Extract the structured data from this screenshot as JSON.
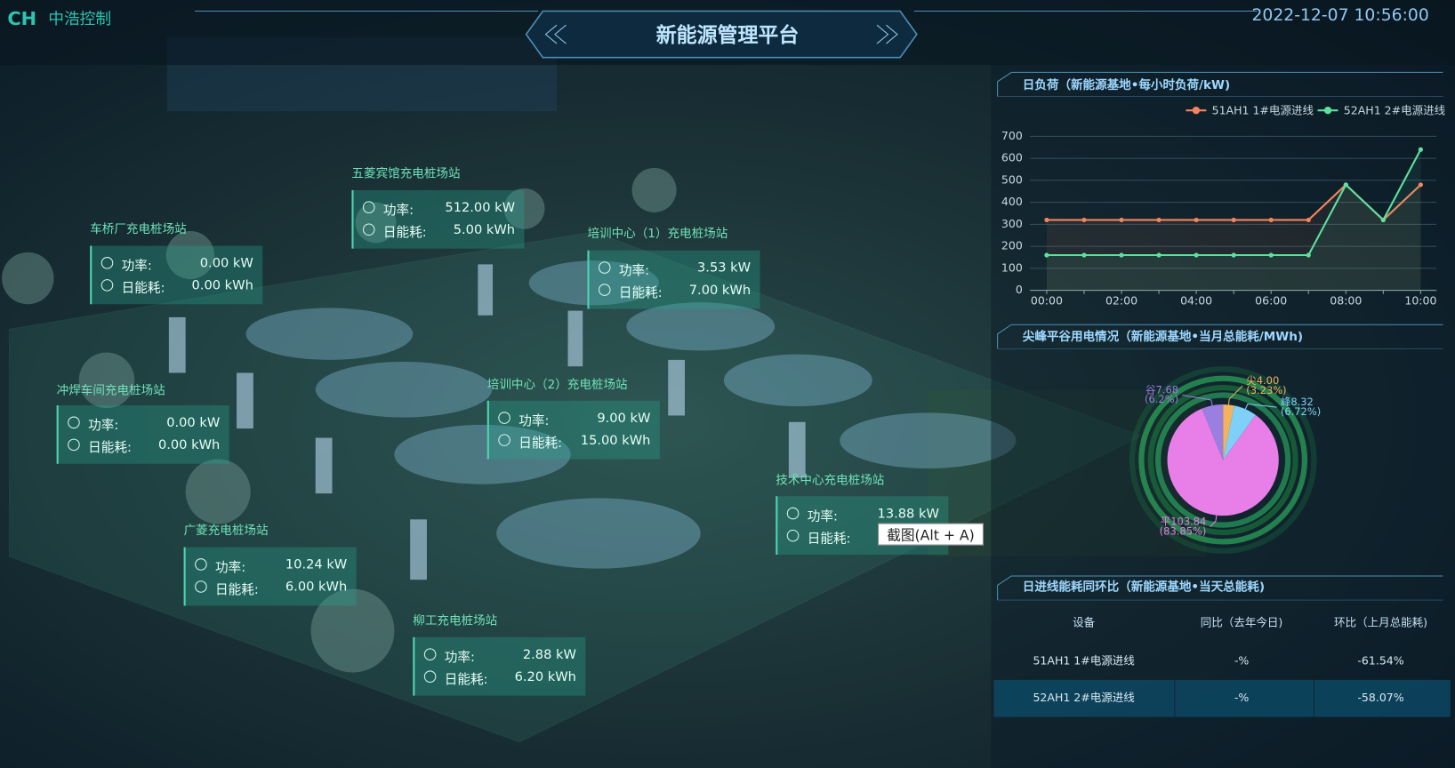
{
  "header": {
    "logo": "CH",
    "company": "中浩控制",
    "title": "新能源管理平台",
    "datetime": "2022-12-07 10:56:00"
  },
  "station_labels": {
    "power": "功率:",
    "energy": "日能耗:"
  },
  "stations": [
    {
      "name": "五菱宾馆充电桩场站",
      "power": "512.00 kW",
      "energy": "5.00 kWh"
    },
    {
      "name": "车桥厂充电桩场站",
      "power": "0.00 kW",
      "energy": "0.00 kWh"
    },
    {
      "name": "培训中心（1）充电桩场站",
      "power": "3.53 kW",
      "energy": "7.00 kWh"
    },
    {
      "name": "冲焊车间充电桩场站",
      "power": "0.00 kW",
      "energy": "0.00 kWh"
    },
    {
      "name": "培训中心（2）充电桩场站",
      "power": "9.00 kW",
      "energy": "15.00 kWh"
    },
    {
      "name": "技术中心充电桩场站",
      "power": "13.88 kW",
      "energy": null
    },
    {
      "name": "广菱充电桩场站",
      "power": "10.24 kW",
      "energy": "6.00 kWh"
    },
    {
      "name": "柳工充电桩场站",
      "power": "2.88 kW",
      "energy": "6.20 kWh"
    }
  ],
  "tooltip": "截图(Alt + A)",
  "chart_data": [
    {
      "type": "line",
      "title": "日负荷（新能源基地•每小时负荷/kW)",
      "categories": [
        "00:00",
        null,
        "02:00",
        null,
        "04:00",
        null,
        "06:00",
        null,
        "08:00",
        null,
        "10:00"
      ],
      "series": [
        {
          "name": "51AH1 1#电源进线",
          "color": "#f4845f",
          "values": [
            320,
            320,
            320,
            320,
            320,
            320,
            320,
            320,
            480,
            320,
            480
          ]
        },
        {
          "name": "52AH1 2#电源进线",
          "color": "#5ee0a0",
          "values": [
            160,
            160,
            160,
            160,
            160,
            160,
            160,
            160,
            480,
            320,
            640
          ]
        }
      ],
      "ylim": [
        0,
        700
      ],
      "yticks": [
        0,
        100,
        200,
        300,
        400,
        500,
        600,
        700
      ],
      "grid": true,
      "legend": "top-right"
    },
    {
      "type": "pie",
      "title": "尖峰平谷用电情况（新能源基地•当月总能耗/MWh)",
      "categories": [
        "尖",
        "峰",
        "平",
        "谷"
      ],
      "values": [
        4.0,
        8.32,
        103.84,
        7.68
      ],
      "value_labels": [
        "4.00",
        "8.32",
        "103.84",
        "7.68"
      ],
      "percent_labels": [
        "(3.23%)",
        "(6.72%)",
        "(83.85%)",
        "(6.2%)"
      ],
      "colors": [
        "#f2b35e",
        "#7fd0f8",
        "#e87ee8",
        "#9a7fe0"
      ]
    }
  ],
  "table": {
    "title": "日进线能耗同环比（新能源基地•当天总能耗)",
    "header": [
      "设备",
      "同比（去年今日)",
      "环比（上月总能耗)"
    ],
    "rows": [
      [
        "51AH1 1#电源进线",
        "-%",
        "-61.54%"
      ],
      [
        "52AH1 2#电源进线",
        "-%",
        "-58.07%"
      ]
    ]
  }
}
